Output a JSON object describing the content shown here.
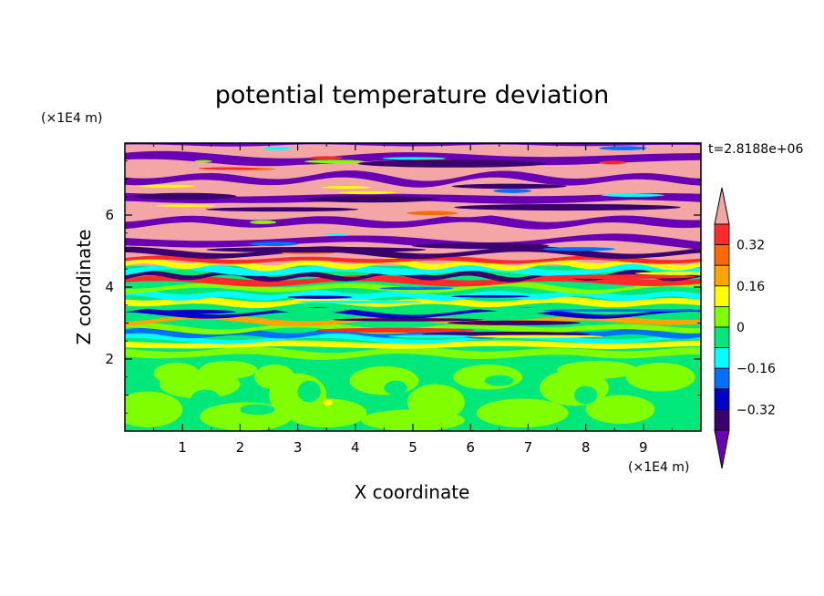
{
  "chart_data": {
    "type": "heatmap",
    "title": "potential temperature deviation",
    "xlabel": "X coordinate",
    "ylabel": "Z coordinate",
    "x_unit": "(×1E4 m)",
    "y_unit": "(×1E4 m)",
    "time_label": "t=2.8188e+06",
    "xlim": [
      0,
      10
    ],
    "ylim": [
      0,
      8
    ],
    "x_ticks": [
      "1",
      "2",
      "3",
      "4",
      "5",
      "6",
      "7",
      "8",
      "9"
    ],
    "y_ticks": [
      "2",
      "4",
      "6"
    ],
    "colorbar": {
      "labels": [
        "0.32",
        "0.16",
        "0",
        "-0.16",
        "-0.32"
      ],
      "label_values": [
        0.32,
        0.16,
        0,
        -0.16,
        -0.32
      ],
      "levels_top_to_bottom": [
        0.4,
        0.32,
        0.24,
        0.16,
        0.08,
        0,
        -0.08,
        -0.16,
        -0.24,
        -0.32,
        -0.4
      ],
      "colors_top_to_bottom": [
        "#f4a6a6",
        "#ff2a2a",
        "#ff6a00",
        "#ffa500",
        "#ffff00",
        "#80ff00",
        "#00e87a",
        "#00ffff",
        "#0070ff",
        "#0000c8",
        "#3a006e",
        "#6a00b4"
      ],
      "extend": "both"
    },
    "field": {
      "regions": [
        {
          "z_range": [
            0,
            2
          ],
          "description_levels": [
            0,
            0.08
          ],
          "dominant": "green"
        },
        {
          "z_range": [
            2,
            4.5
          ],
          "dominant": "mixed"
        },
        {
          "z_range": [
            4.5,
            8
          ],
          "dominant": "layered pink/purple"
        }
      ]
    }
  }
}
